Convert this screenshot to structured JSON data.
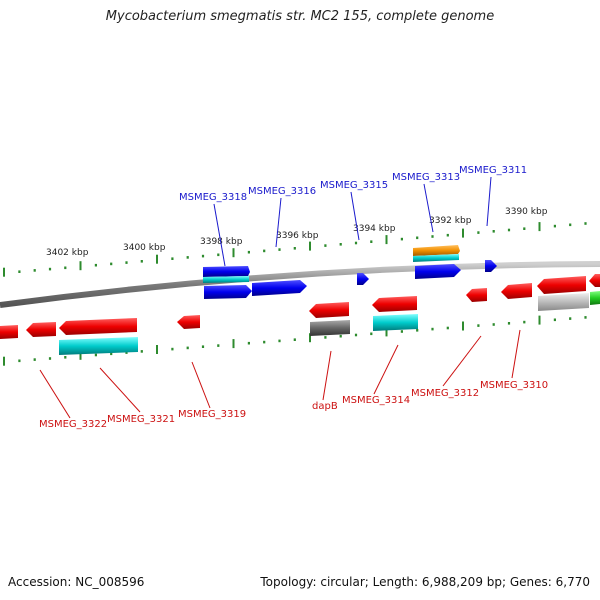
{
  "title": "Mycobacterium smegmatis str. MC2 155, complete genome",
  "footer": {
    "accession": "Accession: NC_008596",
    "topology": "Topology: circular; Length: 6,988,209 bp; Genes: 6,770"
  },
  "scale_labels": [
    "3402 kbp",
    "3400 kbp",
    "3398 kbp",
    "3396 kbp",
    "3394 kbp",
    "3392 kbp",
    "3390 kbp"
  ],
  "top_genes": [
    "MSMEG_3318",
    "MSMEG_3316",
    "MSMEG_3315",
    "MSMEG_3313",
    "MSMEG_3311"
  ],
  "bottom_genes": [
    "MSMEG_3322",
    "MSMEG_3321",
    "MSMEG_3319",
    "dapB",
    "MSMEG_3314",
    "MSMEG_3312",
    "MSMEG_3310"
  ],
  "colors": {
    "forward": "#0000ee",
    "reverse": "#ee0000",
    "rna_cyan": "#00cccc",
    "orange": "#f29000",
    "gray": "#777777",
    "lightgray": "#bbbbbb",
    "green": "#22cc22",
    "tick": "#2e8b2e",
    "top_label": "#1a1acc",
    "bottom_label": "#cc1111"
  }
}
